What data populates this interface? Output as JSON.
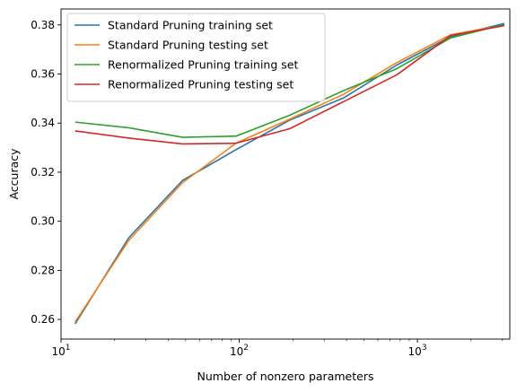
{
  "chart_data": {
    "type": "line",
    "title": "",
    "xlabel": "Number of nonzero parameters",
    "ylabel": "Accuracy",
    "x_scale": "log",
    "xlim": [
      10,
      3300
    ],
    "ylim": [
      0.252,
      0.3865
    ],
    "x_ticks": [
      {
        "value": 10,
        "base": "10",
        "exp": "1"
      },
      {
        "value": 100,
        "base": "10",
        "exp": "2"
      },
      {
        "value": 1000,
        "base": "10",
        "exp": "3"
      }
    ],
    "y_ticks": [
      {
        "value": 0.26,
        "label": "0.26"
      },
      {
        "value": 0.28,
        "label": "0.28"
      },
      {
        "value": 0.3,
        "label": "0.30"
      },
      {
        "value": 0.32,
        "label": "0.32"
      },
      {
        "value": 0.34,
        "label": "0.34"
      },
      {
        "value": 0.36,
        "label": "0.36"
      },
      {
        "value": 0.38,
        "label": "0.38"
      }
    ],
    "grid": false,
    "legend_position": "top-left",
    "x": [
      12,
      24,
      48,
      96,
      192,
      384,
      768,
      1536,
      3072
    ],
    "series": [
      {
        "name": "Standard Pruning training set",
        "color": "#1f77b4",
        "values": [
          0.2582,
          0.2933,
          0.3166,
          0.3292,
          0.3412,
          0.3502,
          0.3637,
          0.3752,
          0.3806
        ]
      },
      {
        "name": "Standard Pruning testing set",
        "color": "#ff7f0e",
        "values": [
          0.259,
          0.2922,
          0.3157,
          0.3318,
          0.3416,
          0.3517,
          0.3647,
          0.376,
          0.3799
        ]
      },
      {
        "name": "Renormalized Pruning training set",
        "color": "#2ca02c",
        "values": [
          0.3404,
          0.3381,
          0.3342,
          0.3347,
          0.3432,
          0.3532,
          0.3622,
          0.3747,
          0.3802
        ]
      },
      {
        "name": "Renormalized Pruning testing set",
        "color": "#d62728",
        "values": [
          0.3368,
          0.3339,
          0.3315,
          0.3318,
          0.3377,
          0.3487,
          0.3597,
          0.3757,
          0.3797
        ]
      }
    ]
  }
}
